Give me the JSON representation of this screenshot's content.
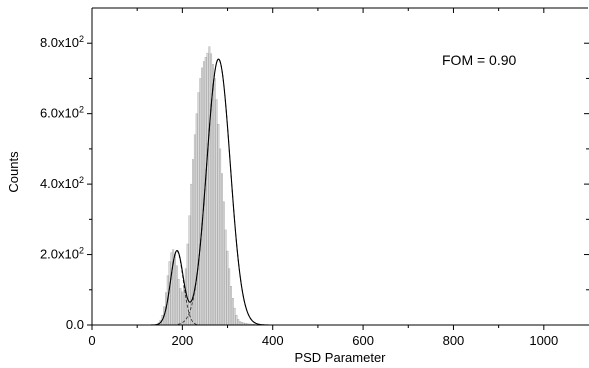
{
  "chart_data": {
    "type": "bar",
    "xlabel": "PSD Parameter",
    "ylabel": "Counts",
    "xlim": [
      0,
      1100
    ],
    "ylim": [
      0,
      900
    ],
    "x_ticks": [
      0,
      200,
      400,
      600,
      800,
      1000
    ],
    "x_tick_labels": [
      "0",
      "200",
      "400",
      "600",
      "800",
      "1000"
    ],
    "y_ticks": [
      0,
      200,
      400,
      600,
      800
    ],
    "y_tick_labels": [
      {
        "mant": "0.0",
        "exp": ""
      },
      {
        "mant": "2.0x10",
        "exp": "2"
      },
      {
        "mant": "4.0x10",
        "exp": "2"
      },
      {
        "mant": "6.0x10",
        "exp": "2"
      },
      {
        "mant": "8.0x10",
        "exp": "2"
      }
    ],
    "annotation": "FOM = 0.90",
    "histogram": {
      "bin_width": 4,
      "x": [
        148,
        152,
        156,
        160,
        164,
        168,
        172,
        176,
        180,
        184,
        188,
        192,
        196,
        200,
        204,
        208,
        212,
        216,
        220,
        224,
        228,
        232,
        236,
        240,
        244,
        248,
        252,
        256,
        260,
        264,
        268,
        272,
        276,
        280,
        284,
        288,
        292,
        296,
        300,
        304,
        308,
        312,
        316,
        320,
        324,
        328,
        332,
        336,
        340,
        344,
        348,
        352,
        356,
        360,
        364,
        368,
        372,
        376,
        380
      ],
      "values": [
        6,
        14,
        28,
        52,
        92,
        140,
        180,
        205,
        214,
        200,
        168,
        130,
        104,
        94,
        110,
        160,
        230,
        310,
        400,
        470,
        540,
        600,
        660,
        700,
        730,
        748,
        760,
        772,
        790,
        770,
        740,
        700,
        640,
        570,
        500,
        430,
        350,
        270,
        210,
        160,
        110,
        76,
        48,
        28,
        16,
        10,
        8,
        6,
        5,
        4,
        3,
        3,
        2,
        2,
        1,
        1,
        1,
        1,
        0
      ]
    },
    "fits": {
      "peak1": {
        "center": 188,
        "sigma": 14,
        "amplitude": 210
      },
      "peak2": {
        "center": 280,
        "sigma": 26,
        "amplitude": 755
      }
    },
    "grid": false,
    "legend": "none"
  }
}
